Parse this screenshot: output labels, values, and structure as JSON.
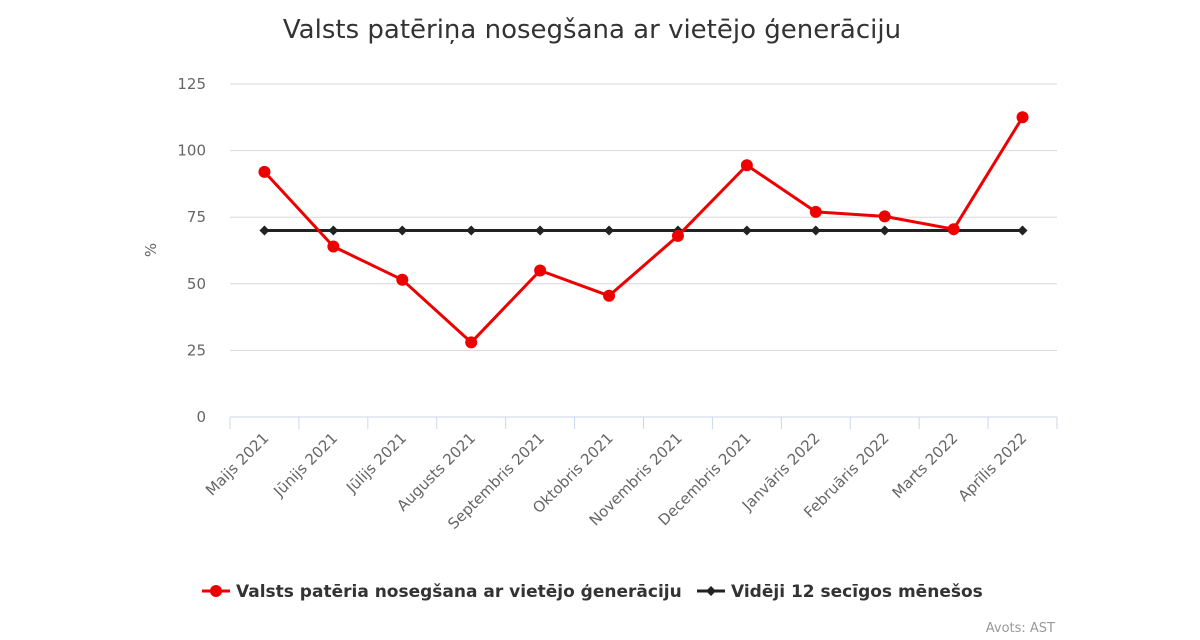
{
  "chart_data": {
    "type": "line",
    "title": "Valsts patēriņa nosegšana ar vietējo ģenerāciju",
    "xlabel": "",
    "ylabel": "%",
    "ylim": [
      0,
      125
    ],
    "yticks": [
      0,
      25,
      50,
      75,
      100,
      125
    ],
    "grid": true,
    "legend_position": "bottom",
    "categories": [
      "Maijs 2021",
      "Jūnijs 2021",
      "Jūlijs 2021",
      "Augusts 2021",
      "Septembris 2021",
      "Oktobris 2021",
      "Novembris 2021",
      "Decembris 2021",
      "Janvāris 2022",
      "Februāris 2022",
      "Marts 2022",
      "Aprīlis 2022"
    ],
    "series": [
      {
        "name": "Valsts patēria nosegšana ar vietējo ģenerāciju",
        "color": "#ee0000",
        "marker": "circle",
        "values": [
          92,
          64,
          51.5,
          28,
          55,
          45.5,
          68,
          94.5,
          77,
          75.3,
          70.5,
          112.5
        ]
      },
      {
        "name": "Vidēji 12 secīgos mēnešos",
        "color": "#222222",
        "marker": "diamond",
        "values": [
          70,
          70,
          70,
          70,
          70,
          70,
          70,
          70,
          70,
          70,
          70,
          70
        ]
      }
    ],
    "credits": "Avots: AST"
  }
}
